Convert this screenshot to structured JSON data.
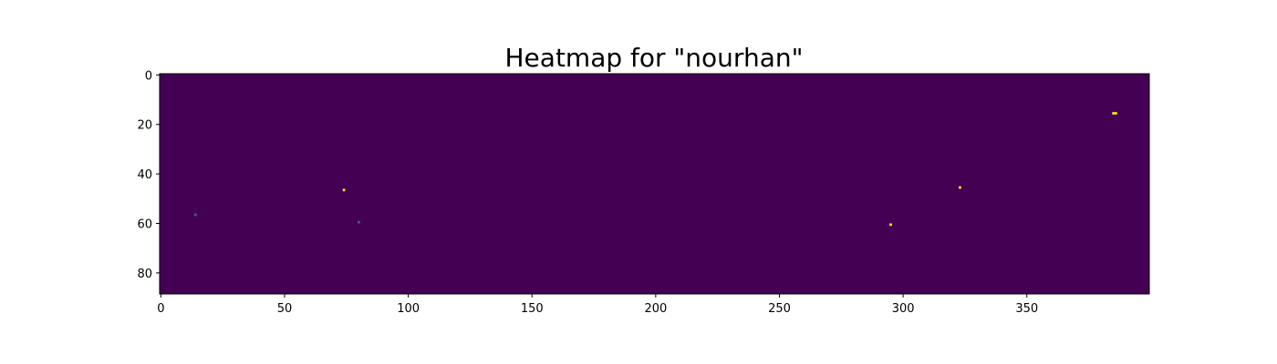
{
  "chart_data": {
    "type": "heatmap",
    "title": "Heatmap for \"nourhan\"",
    "xlabel": "",
    "ylabel": "",
    "xlim": [
      0,
      400
    ],
    "ylim": [
      89,
      0
    ],
    "x_ticks": [
      0,
      50,
      100,
      150,
      200,
      250,
      300,
      350
    ],
    "y_ticks": [
      0,
      20,
      40,
      60,
      80
    ],
    "colormap": "viridis",
    "background_color": "#440154",
    "grid": false,
    "hot_cells": [
      {
        "x": 14,
        "y": 57,
        "color": "#31688e"
      },
      {
        "x": 74,
        "y": 47,
        "color": "#fde725"
      },
      {
        "x": 80,
        "y": 60,
        "color": "#31688e"
      },
      {
        "x": 295,
        "y": 61,
        "color": "#fde725"
      },
      {
        "x": 323,
        "y": 46,
        "color": "#fde725"
      },
      {
        "x": 385,
        "y": 16,
        "color": "#fde725"
      },
      {
        "x": 386,
        "y": 16,
        "color": "#fde725"
      }
    ]
  }
}
